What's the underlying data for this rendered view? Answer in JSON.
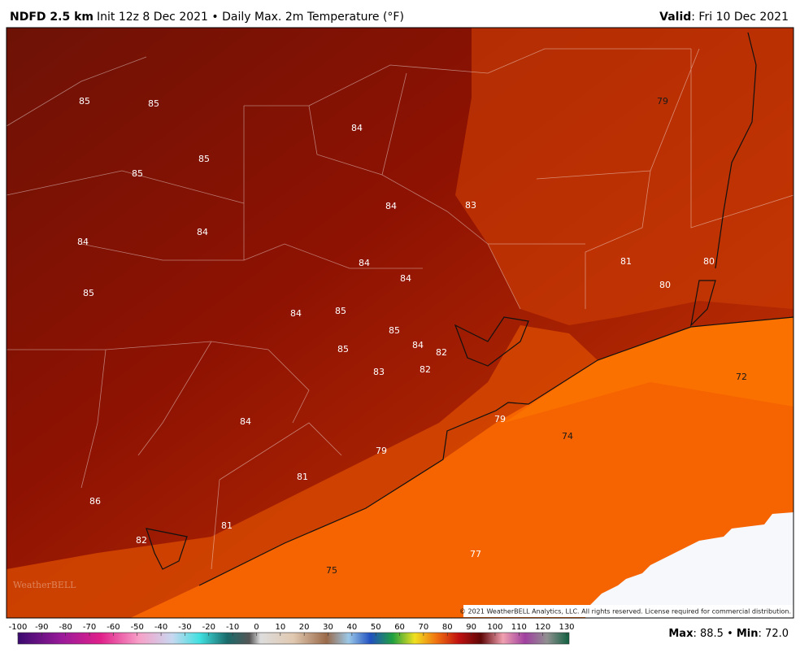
{
  "header": {
    "model": "NDFD 2.5 km",
    "description": "Init 12z 8 Dec 2021 • Daily Max. 2m Temperature (°F)",
    "valid_label": "Valid",
    "valid_value": ": Fri 10 Dec 2021"
  },
  "map": {
    "labels": [
      85,
      85,
      84,
      79,
      85,
      85,
      84,
      83,
      84,
      84,
      84,
      81,
      80,
      84,
      80,
      85,
      84,
      85,
      85,
      84,
      82,
      85,
      83,
      82,
      72,
      84,
      79,
      74,
      79,
      81,
      86,
      81,
      82,
      77,
      75
    ],
    "copyright": "© 2021 WeatherBELL Analytics, LLC. All rights reserved. License required for commercial distribution.",
    "logo": "WeatherBELL"
  },
  "colorbar": {
    "ticks": [
      -100,
      -90,
      -80,
      -70,
      -60,
      -50,
      -40,
      -30,
      -20,
      -10,
      0,
      10,
      20,
      30,
      40,
      50,
      60,
      70,
      80,
      90,
      100,
      110,
      120,
      130
    ]
  },
  "stats": {
    "max_label": "Max",
    "max_value": ": 88.5",
    "separator": " • ",
    "min_label": "Min",
    "min_value": ": 72.0"
  }
}
